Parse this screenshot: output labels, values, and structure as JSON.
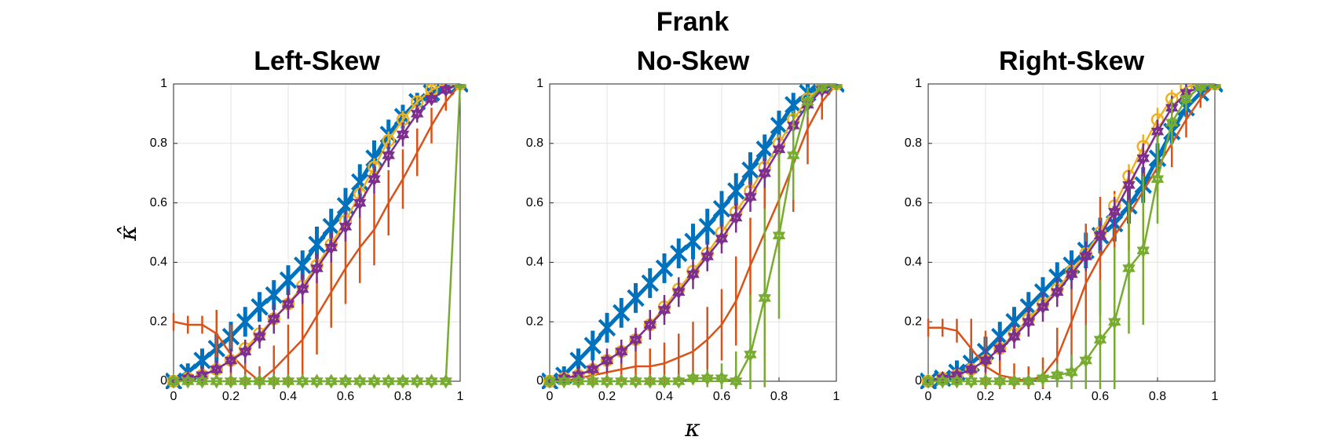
{
  "title": "Frank",
  "xlabel": "κ",
  "ylabel": "κ̂",
  "chart_data": [
    {
      "type": "line",
      "title": "Left-Skew",
      "x": [
        0,
        0.05,
        0.1,
        0.15,
        0.2,
        0.25,
        0.3,
        0.35,
        0.4,
        0.45,
        0.5,
        0.55,
        0.6,
        0.65,
        0.7,
        0.75,
        0.8,
        0.85,
        0.9,
        0.95,
        1
      ],
      "xlim": [
        0,
        1
      ],
      "ylim": [
        0,
        1
      ],
      "xticks": [
        0,
        0.2,
        0.4,
        0.6,
        0.8,
        1
      ],
      "yticks": [
        0,
        0.2,
        0.4,
        0.6,
        0.8,
        1
      ],
      "grid": true,
      "series": [
        {
          "color": "#0072bd",
          "marker": "x",
          "values": [
            0,
            0.03,
            0.07,
            0.11,
            0.15,
            0.2,
            0.25,
            0.29,
            0.34,
            0.39,
            0.46,
            0.52,
            0.59,
            0.67,
            0.75,
            0.83,
            0.89,
            0.94,
            0.97,
            0.99,
            1
          ],
          "errors": [
            0.01,
            0.03,
            0.04,
            0.05,
            0.05,
            0.05,
            0.05,
            0.05,
            0.05,
            0.05,
            0.06,
            0.06,
            0.06,
            0.06,
            0.06,
            0.05,
            0.04,
            0.03,
            0.02,
            0.01,
            0
          ]
        },
        {
          "color": "#d95319",
          "marker": "none",
          "values": [
            0.2,
            0.19,
            0.19,
            0.16,
            0.09,
            0.04,
            0,
            0.04,
            0.09,
            0.14,
            0.22,
            0.3,
            0.38,
            0.45,
            0.51,
            0.6,
            0.68,
            0.77,
            0.86,
            0.94,
            1
          ],
          "errors": [
            0.03,
            0.03,
            0.03,
            0.08,
            0.1,
            0.08,
            0.05,
            0.08,
            0.1,
            0.12,
            0.13,
            0.12,
            0.12,
            0.12,
            0.12,
            0.11,
            0.1,
            0.08,
            0.06,
            0.03,
            0
          ]
        },
        {
          "color": "#edb120",
          "marker": "circle",
          "values": [
            0,
            0.01,
            0.02,
            0.04,
            0.07,
            0.11,
            0.16,
            0.21,
            0.26,
            0.32,
            0.39,
            0.46,
            0.54,
            0.63,
            0.72,
            0.81,
            0.88,
            0.94,
            0.98,
            1,
            1
          ],
          "errors": [
            0.01,
            0.02,
            0.02,
            0.03,
            0.03,
            0.03,
            0.03,
            0.03,
            0.03,
            0.03,
            0.03,
            0.03,
            0.03,
            0.03,
            0.03,
            0.03,
            0.03,
            0.02,
            0.02,
            0.01,
            0
          ]
        },
        {
          "color": "#7e2f8e",
          "marker": "star",
          "values": [
            0,
            0.01,
            0.02,
            0.04,
            0.07,
            0.1,
            0.15,
            0.21,
            0.26,
            0.31,
            0.38,
            0.45,
            0.52,
            0.6,
            0.68,
            0.76,
            0.83,
            0.9,
            0.95,
            0.98,
            1
          ],
          "errors": [
            0.01,
            0.02,
            0.03,
            0.03,
            0.04,
            0.04,
            0.04,
            0.05,
            0.05,
            0.05,
            0.05,
            0.05,
            0.05,
            0.05,
            0.05,
            0.04,
            0.04,
            0.03,
            0.02,
            0.01,
            0
          ]
        },
        {
          "color": "#77ac30",
          "marker": "hexagram",
          "values": [
            0,
            0,
            0,
            0,
            0,
            0,
            0,
            0,
            0,
            0,
            0,
            0,
            0,
            0,
            0,
            0,
            0,
            0,
            0,
            0,
            1
          ],
          "errors": [
            0,
            0,
            0,
            0,
            0,
            0,
            0,
            0,
            0,
            0,
            0,
            0,
            0,
            0,
            0,
            0,
            0,
            0,
            0,
            0,
            0
          ]
        }
      ]
    },
    {
      "type": "line",
      "title": "No-Skew",
      "x": [
        0,
        0.05,
        0.1,
        0.15,
        0.2,
        0.25,
        0.3,
        0.35,
        0.4,
        0.45,
        0.5,
        0.55,
        0.6,
        0.65,
        0.7,
        0.75,
        0.8,
        0.85,
        0.9,
        0.95,
        1
      ],
      "xlim": [
        0,
        1
      ],
      "ylim": [
        0,
        1
      ],
      "xticks": [
        0,
        0.2,
        0.4,
        0.6,
        0.8,
        1
      ],
      "yticks": [
        0,
        0.2,
        0.4,
        0.6,
        0.8,
        1
      ],
      "grid": true,
      "series": [
        {
          "color": "#0072bd",
          "marker": "x",
          "values": [
            0,
            0.02,
            0.07,
            0.12,
            0.18,
            0.23,
            0.28,
            0.33,
            0.38,
            0.43,
            0.47,
            0.52,
            0.58,
            0.64,
            0.71,
            0.78,
            0.86,
            0.93,
            0.97,
            0.99,
            1
          ],
          "errors": [
            0.01,
            0.03,
            0.04,
            0.05,
            0.05,
            0.05,
            0.05,
            0.05,
            0.05,
            0.05,
            0.06,
            0.06,
            0.06,
            0.06,
            0.06,
            0.05,
            0.05,
            0.04,
            0.03,
            0.01,
            0
          ]
        },
        {
          "color": "#d95319",
          "marker": "none",
          "values": [
            0,
            0,
            0.01,
            0.02,
            0.03,
            0.04,
            0.05,
            0.05,
            0.06,
            0.08,
            0.1,
            0.14,
            0.19,
            0.27,
            0.39,
            0.5,
            0.61,
            0.73,
            0.85,
            0.94,
            1
          ],
          "errors": [
            0.01,
            0.02,
            0.03,
            0.03,
            0.03,
            0.04,
            0.05,
            0.06,
            0.07,
            0.08,
            0.1,
            0.11,
            0.12,
            0.15,
            0.16,
            0.16,
            0.18,
            0.16,
            0.12,
            0.06,
            0
          ]
        },
        {
          "color": "#edb120",
          "marker": "circle",
          "values": [
            0,
            0.01,
            0.02,
            0.04,
            0.07,
            0.1,
            0.14,
            0.19,
            0.25,
            0.31,
            0.37,
            0.43,
            0.5,
            0.57,
            0.64,
            0.72,
            0.8,
            0.88,
            0.95,
            0.99,
            1
          ],
          "errors": [
            0.01,
            0.02,
            0.02,
            0.03,
            0.03,
            0.03,
            0.03,
            0.03,
            0.03,
            0.03,
            0.03,
            0.03,
            0.03,
            0.03,
            0.03,
            0.03,
            0.03,
            0.03,
            0.02,
            0.01,
            0
          ]
        },
        {
          "color": "#7e2f8e",
          "marker": "star",
          "values": [
            0,
            0.01,
            0.02,
            0.04,
            0.07,
            0.1,
            0.14,
            0.19,
            0.24,
            0.3,
            0.36,
            0.42,
            0.48,
            0.55,
            0.62,
            0.7,
            0.78,
            0.86,
            0.93,
            0.98,
            1
          ],
          "errors": [
            0.01,
            0.02,
            0.03,
            0.03,
            0.04,
            0.04,
            0.04,
            0.05,
            0.05,
            0.05,
            0.05,
            0.05,
            0.05,
            0.05,
            0.05,
            0.05,
            0.04,
            0.04,
            0.03,
            0.01,
            0
          ]
        },
        {
          "color": "#77ac30",
          "marker": "hexagram",
          "values": [
            0,
            0,
            0,
            0,
            0,
            0,
            0,
            0,
            0,
            0,
            0.01,
            0.01,
            0.01,
            0,
            0.09,
            0.28,
            0.49,
            0.76,
            0.94,
            0.99,
            1
          ],
          "errors": [
            0,
            0,
            0,
            0,
            0,
            0,
            0,
            0,
            0,
            0,
            0.02,
            0.03,
            0.05,
            0.1,
            0.2,
            0.3,
            0.28,
            0.15,
            0.05,
            0.02,
            0
          ]
        }
      ]
    },
    {
      "type": "line",
      "title": "Right-Skew",
      "x": [
        0,
        0.05,
        0.1,
        0.15,
        0.2,
        0.25,
        0.3,
        0.35,
        0.4,
        0.45,
        0.5,
        0.55,
        0.6,
        0.65,
        0.7,
        0.75,
        0.8,
        0.85,
        0.9,
        0.95,
        1
      ],
      "xlim": [
        0,
        1
      ],
      "ylim": [
        0,
        1
      ],
      "xticks": [
        0,
        0.2,
        0.4,
        0.6,
        0.8,
        1
      ],
      "yticks": [
        0,
        0.2,
        0.4,
        0.6,
        0.8,
        1
      ],
      "grid": true,
      "series": [
        {
          "color": "#0072bd",
          "marker": "x",
          "values": [
            0,
            0.01,
            0.03,
            0.06,
            0.1,
            0.15,
            0.2,
            0.25,
            0.3,
            0.35,
            0.39,
            0.44,
            0.49,
            0.53,
            0.59,
            0.66,
            0.75,
            0.84,
            0.92,
            0.97,
            1
          ],
          "errors": [
            0.01,
            0.02,
            0.04,
            0.05,
            0.05,
            0.05,
            0.05,
            0.05,
            0.05,
            0.05,
            0.05,
            0.06,
            0.06,
            0.06,
            0.06,
            0.06,
            0.05,
            0.04,
            0.03,
            0.01,
            0
          ]
        },
        {
          "color": "#d95319",
          "marker": "none",
          "values": [
            0.18,
            0.18,
            0.17,
            0.11,
            0.05,
            0.02,
            0.01,
            0,
            0.02,
            0.08,
            0.2,
            0.33,
            0.42,
            0.49,
            0.56,
            0.64,
            0.72,
            0.8,
            0.88,
            0.95,
            1
          ],
          "errors": [
            0.03,
            0.03,
            0.04,
            0.1,
            0.12,
            0.08,
            0.05,
            0.05,
            0.06,
            0.1,
            0.15,
            0.2,
            0.2,
            0.15,
            0.12,
            0.1,
            0.1,
            0.08,
            0.06,
            0.03,
            0
          ]
        },
        {
          "color": "#edb120",
          "marker": "circle",
          "values": [
            0,
            0.01,
            0.02,
            0.04,
            0.07,
            0.11,
            0.16,
            0.21,
            0.26,
            0.31,
            0.37,
            0.43,
            0.5,
            0.59,
            0.69,
            0.79,
            0.88,
            0.95,
            0.99,
            1,
            1
          ],
          "errors": [
            0.01,
            0.02,
            0.02,
            0.03,
            0.03,
            0.03,
            0.03,
            0.03,
            0.03,
            0.03,
            0.03,
            0.03,
            0.04,
            0.04,
            0.04,
            0.04,
            0.04,
            0.03,
            0.02,
            0.01,
            0
          ]
        },
        {
          "color": "#7e2f8e",
          "marker": "star",
          "values": [
            0,
            0.01,
            0.02,
            0.04,
            0.07,
            0.11,
            0.15,
            0.2,
            0.25,
            0.3,
            0.36,
            0.42,
            0.49,
            0.57,
            0.66,
            0.75,
            0.84,
            0.92,
            0.97,
            0.99,
            1
          ],
          "errors": [
            0.01,
            0.02,
            0.03,
            0.03,
            0.04,
            0.04,
            0.04,
            0.05,
            0.05,
            0.05,
            0.05,
            0.05,
            0.05,
            0.05,
            0.05,
            0.05,
            0.04,
            0.04,
            0.03,
            0.01,
            0
          ]
        },
        {
          "color": "#77ac30",
          "marker": "hexagram",
          "values": [
            0,
            0,
            0,
            0,
            0,
            0,
            0,
            0,
            0.01,
            0.02,
            0.03,
            0.07,
            0.14,
            0.2,
            0.38,
            0.44,
            0.68,
            0.87,
            0.95,
            0.99,
            1
          ],
          "errors": [
            0,
            0,
            0,
            0,
            0,
            0.01,
            0.01,
            0.02,
            0.03,
            0.04,
            0.06,
            0.12,
            0.2,
            0.25,
            0.22,
            0.25,
            0.15,
            0.08,
            0.04,
            0.02,
            0
          ]
        }
      ]
    }
  ]
}
